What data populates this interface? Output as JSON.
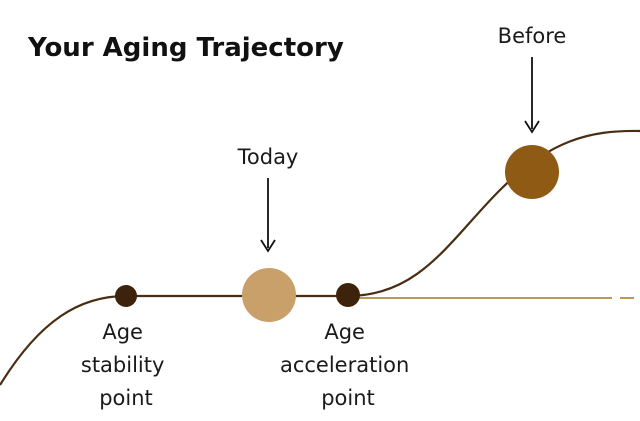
{
  "title": "Your Aging Trajectory",
  "markers": {
    "today": "Today",
    "before": "Before"
  },
  "points": {
    "stability": [
      "Age",
      "stability",
      "point"
    ],
    "acceleration": [
      "Age",
      "acceleration",
      "point"
    ]
  },
  "colors": {
    "curve": "#4a2e14",
    "reference_line": "#b59a5a",
    "point_dark": "#3d230c",
    "today_fill": "#c9a06a",
    "before_fill": "#8f5a14",
    "arrow": "#111111"
  }
}
